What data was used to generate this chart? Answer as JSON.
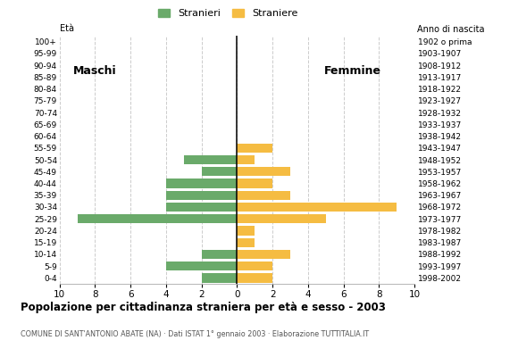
{
  "age_groups_bottom_to_top": [
    "0-4",
    "5-9",
    "10-14",
    "15-19",
    "20-24",
    "25-29",
    "30-34",
    "35-39",
    "40-44",
    "45-49",
    "50-54",
    "55-59",
    "60-64",
    "65-69",
    "70-74",
    "75-79",
    "80-84",
    "85-89",
    "90-94",
    "95-99",
    "100+"
  ],
  "birth_years_bottom_to_top": [
    "1998-2002",
    "1993-1997",
    "1988-1992",
    "1983-1987",
    "1978-1982",
    "1973-1977",
    "1968-1972",
    "1963-1967",
    "1958-1962",
    "1953-1957",
    "1948-1952",
    "1943-1947",
    "1938-1942",
    "1933-1937",
    "1928-1932",
    "1923-1927",
    "1918-1922",
    "1913-1917",
    "1908-1912",
    "1903-1907",
    "1902 o prima"
  ],
  "maschi_bottom_to_top": [
    2,
    4,
    2,
    0,
    0,
    9,
    4,
    4,
    4,
    2,
    3,
    0,
    0,
    0,
    0,
    0,
    0,
    0,
    0,
    0,
    0
  ],
  "femmine_bottom_to_top": [
    2,
    2,
    3,
    1,
    1,
    5,
    9,
    3,
    2,
    3,
    1,
    2,
    0,
    0,
    0,
    0,
    0,
    0,
    0,
    0,
    0
  ],
  "color_maschi": "#6aaa6a",
  "color_femmine": "#f5bc42",
  "title": "Popolazione per cittadinanza straniera per età e sesso - 2003",
  "subtitle": "COMUNE DI SANT'ANTONIO ABATE (NA) · Dati ISTAT 1° gennaio 2003 · Elaborazione TUTTITALIA.IT",
  "legend_maschi": "Stranieri",
  "legend_femmine": "Straniere",
  "label_maschi": "Maschi",
  "label_femmine": "Femmine",
  "label_eta": "Età",
  "label_nascita": "Anno di nascita",
  "xlim": 10,
  "background_color": "#ffffff",
  "grid_color": "#cccccc",
  "bar_height": 0.78
}
